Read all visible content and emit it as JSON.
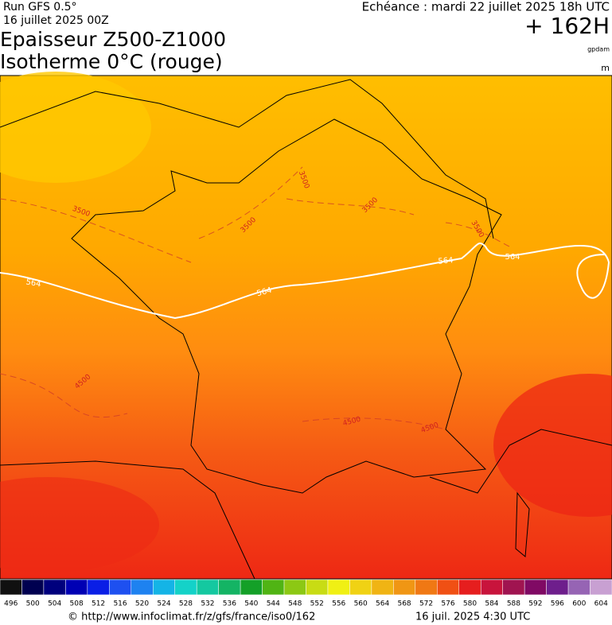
{
  "header": {
    "run": "Run GFS 0.5°",
    "run_date": "16 juillet 2025 00Z",
    "title_line1": "Epaisseur Z500-Z1000",
    "title_line2": "Isotherme 0°C (rouge)",
    "forecast": "Echéance : mardi 22 juillet 2025 18h UTC",
    "lead_time": "+ 162H",
    "unit_thickness": "gpdam",
    "unit_isotherm": "m"
  },
  "map": {
    "isotherm_labels": [
      "3500",
      "3500",
      "3500",
      "3500",
      "3500",
      "4500",
      "4500",
      "4500"
    ],
    "thickness_labels": [
      "564",
      "564",
      "564",
      "564"
    ]
  },
  "legend": {
    "values": [
      496,
      500,
      504,
      508,
      512,
      516,
      520,
      524,
      528,
      532,
      536,
      540,
      544,
      548,
      552,
      556,
      560,
      564,
      568,
      572,
      576,
      580,
      584,
      588,
      592,
      596,
      600,
      604
    ],
    "colors": [
      "#101010",
      "#000050",
      "#00007d",
      "#0000b4",
      "#0a1ee6",
      "#1e50f0",
      "#1e82f0",
      "#14b4e6",
      "#14d2c8",
      "#14c8a0",
      "#14b464",
      "#14a028",
      "#50b414",
      "#8cc814",
      "#c8dc14",
      "#f0f014",
      "#f0d214",
      "#f0b414",
      "#f09614",
      "#f07814",
      "#f05014",
      "#e61e1e",
      "#c8143c",
      "#a01450",
      "#800a64",
      "#6e1e8c",
      "#9664b4",
      "#c8a0d2"
    ]
  },
  "footer": {
    "url": "© http://www.infoclimat.fr/z/gfs/france/iso0/162",
    "timestamp": "16 juil. 2025  4:30 UTC"
  }
}
